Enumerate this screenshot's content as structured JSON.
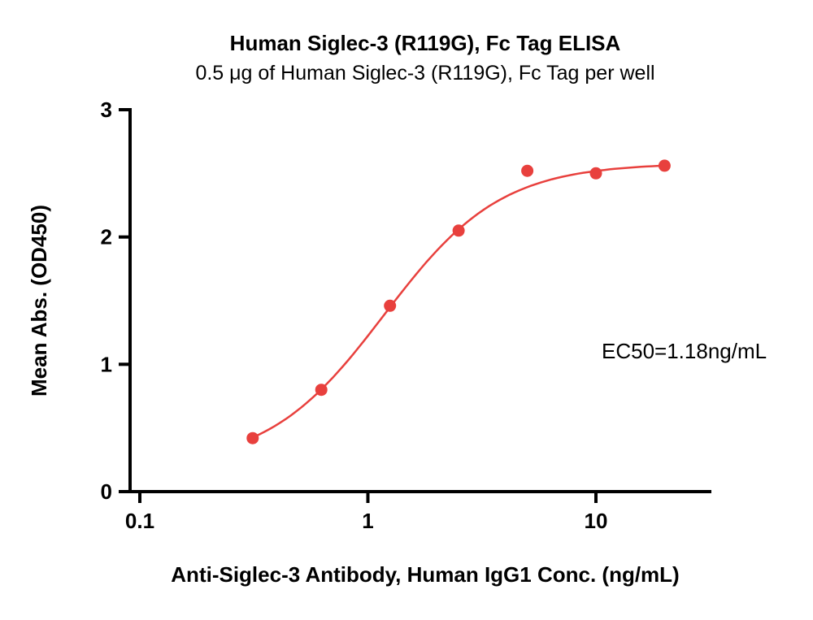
{
  "chart_data": {
    "type": "scatter",
    "title": "Human Siglec-3 (R119G), Fc Tag ELISA",
    "subtitle": "0.5 μg of Human Siglec-3 (R119G), Fc Tag per well",
    "xlabel": "Anti-Siglec-3 Antibody, Human IgG1 Conc. (ng/mL)",
    "ylabel": "Mean Abs. (OD450)",
    "x_scale": "log10",
    "xlim": [
      0.1,
      32
    ],
    "ylim": [
      0,
      3
    ],
    "grid": false,
    "legend": "none",
    "x_ticks": [
      {
        "value": 0.1,
        "label": "0.1"
      },
      {
        "value": 1,
        "label": "1"
      },
      {
        "value": 10,
        "label": "10"
      }
    ],
    "y_ticks": [
      {
        "value": 0,
        "label": "0"
      },
      {
        "value": 1,
        "label": "1"
      },
      {
        "value": 2,
        "label": "2"
      },
      {
        "value": 3,
        "label": "3"
      }
    ],
    "annotation": "EC50=1.18ng/mL",
    "series": [
      {
        "name": "Human Siglec-3 (R119G), Fc Tag",
        "color": "#E8403D",
        "points": [
          {
            "x": 0.3125,
            "y": 0.42
          },
          {
            "x": 0.625,
            "y": 0.8
          },
          {
            "x": 1.25,
            "y": 1.46
          },
          {
            "x": 2.5,
            "y": 2.05
          },
          {
            "x": 5,
            "y": 2.52
          },
          {
            "x": 10,
            "y": 2.5
          },
          {
            "x": 20,
            "y": 2.56
          }
        ],
        "fit": {
          "model": "4PL",
          "bottom": 0.2,
          "top": 2.58,
          "ec50": 1.18,
          "hill": 1.7,
          "draw_range": [
            0.3,
            20.5
          ]
        }
      }
    ]
  },
  "colors": {
    "background": "#FFFFFF",
    "axis": "#000000",
    "curve": "#E8403D"
  }
}
